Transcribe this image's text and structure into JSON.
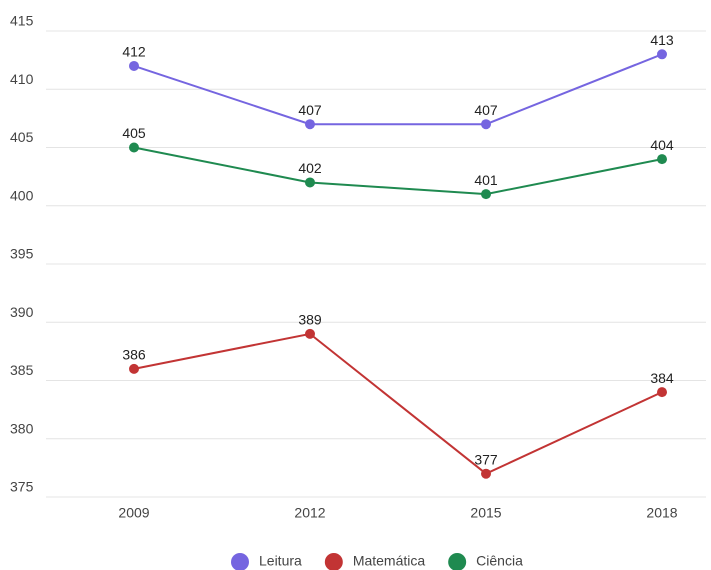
{
  "chart_data": {
    "type": "line",
    "categories": [
      "2009",
      "2012",
      "2015",
      "2018"
    ],
    "series": [
      {
        "name": "Leitura",
        "color": "#7565e0",
        "values": [
          412,
          407,
          407,
          413
        ]
      },
      {
        "name": "Matemática",
        "color": "#c23434",
        "values": [
          386,
          389,
          377,
          384
        ]
      },
      {
        "name": "Ciência",
        "color": "#1f8a50",
        "values": [
          405,
          402,
          401,
          404
        ]
      }
    ],
    "ylim": [
      375,
      415
    ],
    "yticks": [
      375,
      380,
      385,
      390,
      395,
      400,
      405,
      410,
      415
    ],
    "grid": true,
    "legend": "bottom"
  }
}
